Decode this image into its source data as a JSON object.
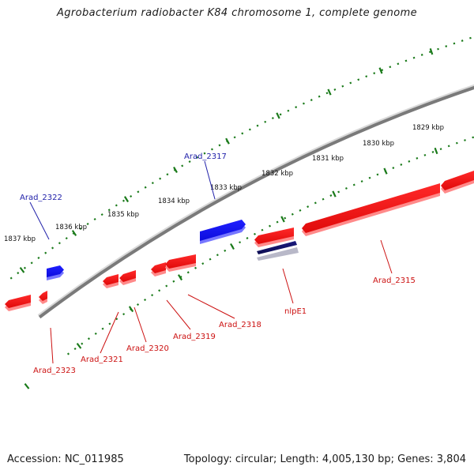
{
  "title": "Agrobacterium radiobacter K84 chromosome 1, complete genome",
  "footer": {
    "accession": "Accession: NC_011985",
    "summary": "Topology: circular; Length: 4,005,130 bp; Genes: 3,804"
  },
  "colors": {
    "backbone": "#7a7a7a",
    "ruler_ticks": "#1a7a1a",
    "forward_gene": "#1515ee",
    "reverse_gene": "#ee1515",
    "rna_gene": "#14146e",
    "forward_label": "#2222aa",
    "reverse_label": "#cc1111"
  },
  "ruler": {
    "labels": [
      "1837 kbp",
      "1836 kbp",
      "1835 kbp",
      "1834 kbp",
      "1833 kbp",
      "1832 kbp",
      "1831 kbp",
      "1830 kbp",
      "1829 kbp"
    ]
  },
  "genes": [
    {
      "label": "Arad_2322",
      "strand": "forward"
    },
    {
      "label": "Arad_2317",
      "strand": "forward"
    },
    {
      "label": "Arad_2323",
      "strand": "reverse"
    },
    {
      "label": "Arad_2321",
      "strand": "reverse"
    },
    {
      "label": "Arad_2320",
      "strand": "reverse"
    },
    {
      "label": "Arad_2319",
      "strand": "reverse"
    },
    {
      "label": "Arad_2318",
      "strand": "reverse"
    },
    {
      "label": "nlpE1",
      "strand": "reverse"
    },
    {
      "label": "Arad_2315",
      "strand": "reverse"
    }
  ]
}
